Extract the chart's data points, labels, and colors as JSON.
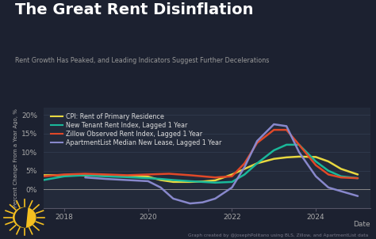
{
  "title": "The Great Rent Disinflation",
  "subtitle": "Rent Growth Has Peaked, and Leading Indicators Suggest Further Decelerations",
  "xlabel": "Date",
  "ylabel": "Percent Change From a Year Ago, %",
  "background_color": "#1c2130",
  "plot_bg_color": "#232a3a",
  "grid_color": "#343d52",
  "title_color": "#ffffff",
  "subtitle_color": "#999999",
  "credit": "Graph created by @JosephPolitano using BLS, Zillow, and ApartmentList data",
  "ylim": [
    -5,
    22
  ],
  "yticks": [
    0,
    5,
    10,
    15,
    20
  ],
  "ytick_labels": [
    "0%",
    "5%",
    "10%",
    "15%",
    "20%"
  ],
  "xlim_start": 2017.5,
  "xlim_end": 2025.3,
  "series": {
    "cpi": {
      "label": "CPI: Rent of Primary Residence",
      "color": "#e8d840",
      "linewidth": 1.8,
      "x": [
        2017.5,
        2018.0,
        2018.3,
        2018.6,
        2019.0,
        2019.3,
        2019.6,
        2020.0,
        2020.3,
        2020.6,
        2021.0,
        2021.3,
        2021.6,
        2022.0,
        2022.3,
        2022.6,
        2023.0,
        2023.3,
        2023.6,
        2024.0,
        2024.3,
        2024.6,
        2025.0
      ],
      "y": [
        3.8,
        3.8,
        3.75,
        3.7,
        3.7,
        3.65,
        3.6,
        3.4,
        2.5,
        2.0,
        2.0,
        2.1,
        2.4,
        4.0,
        5.5,
        7.0,
        8.2,
        8.6,
        8.8,
        8.7,
        7.5,
        5.5,
        4.0
      ]
    },
    "new_tenant": {
      "label": "New Tenant Rent Index, Lagged 1 Year",
      "color": "#1ab89a",
      "linewidth": 1.8,
      "x": [
        2017.5,
        2018.0,
        2018.5,
        2019.0,
        2019.5,
        2020.0,
        2020.3,
        2020.6,
        2021.0,
        2021.3,
        2021.6,
        2022.0,
        2022.3,
        2022.6,
        2023.0,
        2023.3,
        2023.6,
        2024.0,
        2024.3,
        2024.6,
        2025.0
      ],
      "y": [
        2.5,
        3.5,
        3.8,
        3.5,
        3.3,
        3.0,
        2.8,
        2.5,
        2.2,
        2.0,
        1.8,
        2.0,
        4.0,
        7.0,
        10.5,
        12.0,
        12.0,
        7.5,
        5.0,
        3.5,
        3.0
      ]
    },
    "zillow": {
      "label": "Zillow Observed Rent Index, Lagged 1 Year",
      "color": "#e04828",
      "linewidth": 1.8,
      "x": [
        2017.5,
        2018.0,
        2018.5,
        2019.0,
        2019.5,
        2020.0,
        2020.5,
        2021.0,
        2021.3,
        2021.6,
        2022.0,
        2022.3,
        2022.6,
        2023.0,
        2023.3,
        2023.6,
        2024.0,
        2024.3,
        2024.6,
        2025.0
      ],
      "y": [
        3.5,
        4.0,
        4.2,
        4.0,
        3.8,
        4.0,
        4.2,
        3.8,
        3.5,
        3.2,
        3.5,
        7.0,
        12.5,
        16.0,
        16.0,
        12.0,
        6.5,
        4.0,
        3.2,
        3.0
      ]
    },
    "apartmentlist": {
      "label": "ApartmentList Median New Lease, Lagged 1 Year",
      "color": "#8888cc",
      "linewidth": 1.8,
      "x": [
        2018.5,
        2019.0,
        2019.5,
        2020.0,
        2020.3,
        2020.6,
        2021.0,
        2021.3,
        2021.6,
        2022.0,
        2022.3,
        2022.6,
        2023.0,
        2023.3,
        2023.6,
        2024.0,
        2024.3,
        2024.6,
        2025.0
      ],
      "y": [
        3.2,
        2.8,
        2.5,
        2.2,
        0.5,
        -2.5,
        -3.8,
        -3.5,
        -2.5,
        0.5,
        6.0,
        13.0,
        17.5,
        17.0,
        10.0,
        3.5,
        0.5,
        -0.5,
        -1.8
      ]
    }
  }
}
